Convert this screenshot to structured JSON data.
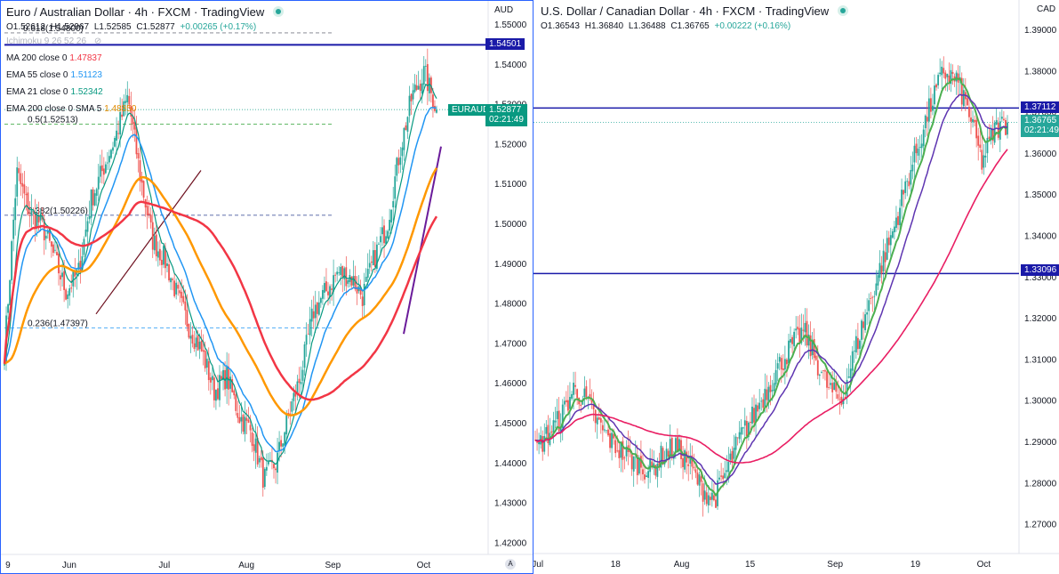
{
  "left_panel": {
    "title": "Euro / Australian Dollar · 4h · FXCM · TradingView",
    "ohlc": {
      "o": "O1.52612",
      "h": "H1.52967",
      "l": "L1.52585",
      "c": "C1.52877",
      "chg": "+0.00265 (+0.17%)"
    },
    "currency_label": "AUD",
    "indicators": [
      {
        "label": "MA 200 close 0",
        "value": "1.47837",
        "color": "#f23645"
      },
      {
        "label": "EMA 55 close 0",
        "value": "1.51123",
        "color": "#2196f3"
      },
      {
        "label": "EMA 21 close 0",
        "value": "1.52342",
        "color": "#089981"
      },
      {
        "label": "EMA 200 close 0 SMA 5",
        "value": "1.48850",
        "color": "#ff9800"
      }
    ],
    "hidden_indicator": "Ichimoku 9 26 52 26",
    "fib_labels": {
      "f618": "0.618(1.54800)",
      "f5": "0.5(1.52513)",
      "f382": "0.382(1.50226)",
      "f236": "0.236(1.47397)"
    },
    "price_ticks": [
      "1.55000",
      "1.54000",
      "1.53000",
      "1.52000",
      "1.51000",
      "1.50000",
      "1.49000",
      "1.48000",
      "1.47000",
      "1.46000",
      "1.45000",
      "1.44000",
      "1.43000",
      "1.42000"
    ],
    "time_ticks": [
      "9",
      "Jun",
      "Jul",
      "Aug",
      "Sep",
      "Oct"
    ],
    "tags": {
      "level": "1.54501",
      "symbol": "EURAUD",
      "price": "1.52877",
      "countdown": "02:21:49"
    },
    "corner": "A"
  },
  "right_panel": {
    "title": "U.S. Dollar / Canadian Dollar · 4h · FXCM · TradingView",
    "ohlc": {
      "o": "O1.36543",
      "h": "H1.36840",
      "l": "L1.36488",
      "c": "C1.36765",
      "chg": "+0.00222 (+0.16%)"
    },
    "currency_label": "CAD",
    "price_ticks": [
      "1.39000",
      "1.38000",
      "1.37000",
      "1.36000",
      "1.35000",
      "1.34000",
      "1.33000",
      "1.32000",
      "1.31000",
      "1.30000",
      "1.29000",
      "1.28000",
      "1.27000"
    ],
    "time_ticks": [
      "Jul",
      "18",
      "Aug",
      "15",
      "Sep",
      "19",
      "Oct"
    ],
    "tags": {
      "level_high": "1.37112",
      "price": "1.36765",
      "countdown": "02:21:49",
      "level_low": "1.33096"
    }
  },
  "colors": {
    "up": "#26a69a",
    "down": "#ef5350",
    "ma200": "#f23645",
    "ema55": "#2196f3",
    "ema21": "#089981",
    "ema200sma": "#ff9800",
    "hline": "#1a1aa8",
    "trend": "#6a1b9a",
    "purple": "#5e35b1",
    "green": "#4caf50",
    "pink": "#e91e63",
    "trendline_dark": "#6d0f1e"
  },
  "chart_data": [
    {
      "type": "candlestick",
      "title": "Euro / Australian Dollar · 4h · FXCM",
      "ylim": [
        1.415,
        1.557
      ],
      "x": [
        "May 9",
        "Jun",
        "Jul",
        "Aug",
        "Sep",
        "Oct"
      ],
      "close_path": [
        [
          "May 9",
          1.468
        ],
        [
          "May 16",
          1.513
        ],
        [
          "May 23",
          1.503
        ],
        [
          "Jun 1",
          1.492
        ],
        [
          "Jun 8",
          1.485
        ],
        [
          "Jun 15",
          1.506
        ],
        [
          "Jun 22",
          1.522
        ],
        [
          "Jul 1",
          1.532
        ],
        [
          "Jul 8",
          1.506
        ],
        [
          "Jul 15",
          1.491
        ],
        [
          "Jul 22",
          1.482
        ],
        [
          "Aug 1",
          1.47
        ],
        [
          "Aug 8",
          1.458
        ],
        [
          "Aug 15",
          1.455
        ],
        [
          "Aug 22",
          1.445
        ],
        [
          "Aug 26",
          1.432
        ],
        [
          "Sep 1",
          1.452
        ],
        [
          "Sep 8",
          1.478
        ],
        [
          "Sep 15",
          1.487
        ],
        [
          "Sep 22",
          1.482
        ],
        [
          "Sep 26",
          1.495
        ],
        [
          "Sep 29",
          1.518
        ],
        [
          "Oct 1",
          1.538
        ],
        [
          "Oct 4",
          1.5288
        ]
      ],
      "series": [
        {
          "name": "MA 200 close 0",
          "last": 1.47837
        },
        {
          "name": "EMA 55 close 0",
          "last": 1.51123
        },
        {
          "name": "EMA 21 close 0",
          "last": 1.52342
        },
        {
          "name": "EMA 200 close 0 SMA 5",
          "last": 1.4885
        }
      ],
      "hlines": [
        1.54501
      ],
      "fib": [
        [
          0.618,
          1.548
        ],
        [
          0.5,
          1.52513
        ],
        [
          0.382,
          1.50226
        ],
        [
          0.236,
          1.47397
        ]
      ]
    },
    {
      "type": "candlestick",
      "title": "U.S. Dollar / Canadian Dollar · 4h · FXCM",
      "ylim": [
        1.264,
        1.396
      ],
      "x": [
        "Jul",
        "18",
        "Aug",
        "15",
        "Sep",
        "19",
        "Oct"
      ],
      "close_path": [
        [
          "Jul 1",
          1.288
        ],
        [
          "Jul 8",
          1.296
        ],
        [
          "Jul 15",
          1.303
        ],
        [
          "Jul 18",
          1.294
        ],
        [
          "Jul 25",
          1.29
        ],
        [
          "Aug 1",
          1.283
        ],
        [
          "Aug 8",
          1.287
        ],
        [
          "Aug 15",
          1.276
        ],
        [
          "Aug 22",
          1.291
        ],
        [
          "Sep 1",
          1.302
        ],
        [
          "Sep 8",
          1.313
        ],
        [
          "Sep 15",
          1.303
        ],
        [
          "Sep 19",
          1.322
        ],
        [
          "Sep 22",
          1.341
        ],
        [
          "Sep 25",
          1.362
        ],
        [
          "Sep 28",
          1.38
        ],
        [
          "Oct 1",
          1.366
        ],
        [
          "Oct 4",
          1.3677
        ]
      ],
      "hlines": [
        1.37112,
        1.33096
      ]
    }
  ]
}
